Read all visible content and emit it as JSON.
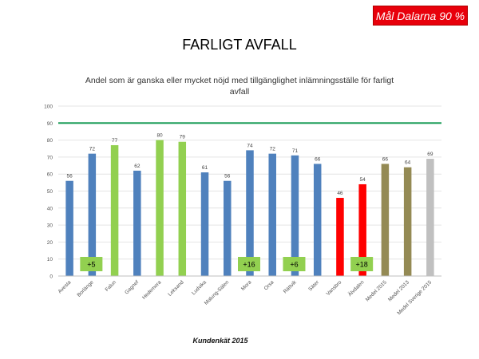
{
  "badge": "Mål Dalarna 90 %",
  "page_title": "FARLIGT AVFALL",
  "footer": "Kundenkät 2015",
  "colors": {
    "blue": "#4f81bd",
    "green": "#92d050",
    "red": "#ff0000",
    "olive": "#948a54",
    "gray": "#c0c0c0",
    "target_line": "#1f9e5a",
    "grid": "#e4e4e4",
    "change_box": "#92d050"
  },
  "chart_data": {
    "type": "bar",
    "title": "Andel som är ganska eller mycket nöjd med tillgänglighet inlämningsställe för farligt avfall",
    "ylim": [
      0,
      100
    ],
    "yticks": [
      "0",
      "10",
      "20",
      "30",
      "40",
      "50",
      "60",
      "70",
      "80",
      "90",
      "100"
    ],
    "grid": true,
    "target_line": 90,
    "categories": [
      "Avesta",
      "Borlänge",
      "Falun",
      "Gagnef",
      "Hedemora",
      "Leksand",
      "Ludvika",
      "Malung-Sälen",
      "Mora",
      "Orsa",
      "Rättvik",
      "Säter",
      "Vansbro",
      "Älvdalen",
      "Medel 2015",
      "Medel 2013",
      "Medel Sverige 2015"
    ],
    "values": [
      56,
      72,
      77,
      62,
      80,
      79,
      61,
      56,
      74,
      72,
      71,
      66,
      46,
      54,
      66,
      64,
      69
    ],
    "value_labels": [
      "56",
      "72",
      "77",
      "62",
      "80",
      "79",
      "61",
      "56",
      "74",
      "72",
      "71",
      "66",
      "46",
      "54",
      "66",
      "64",
      "69"
    ],
    "bar_colors": [
      "blue",
      "blue",
      "green",
      "blue",
      "green",
      "green",
      "blue",
      "blue",
      "blue",
      "blue",
      "blue",
      "blue",
      "red",
      "red",
      "olive",
      "olive",
      "gray"
    ],
    "change_annotations": [
      {
        "category": "Borlänge",
        "text": "+5"
      },
      {
        "category": "Mora",
        "text": "+16"
      },
      {
        "category": "Rättvik",
        "text": "+6"
      },
      {
        "category": "Älvdalen",
        "text": "+18"
      }
    ]
  }
}
